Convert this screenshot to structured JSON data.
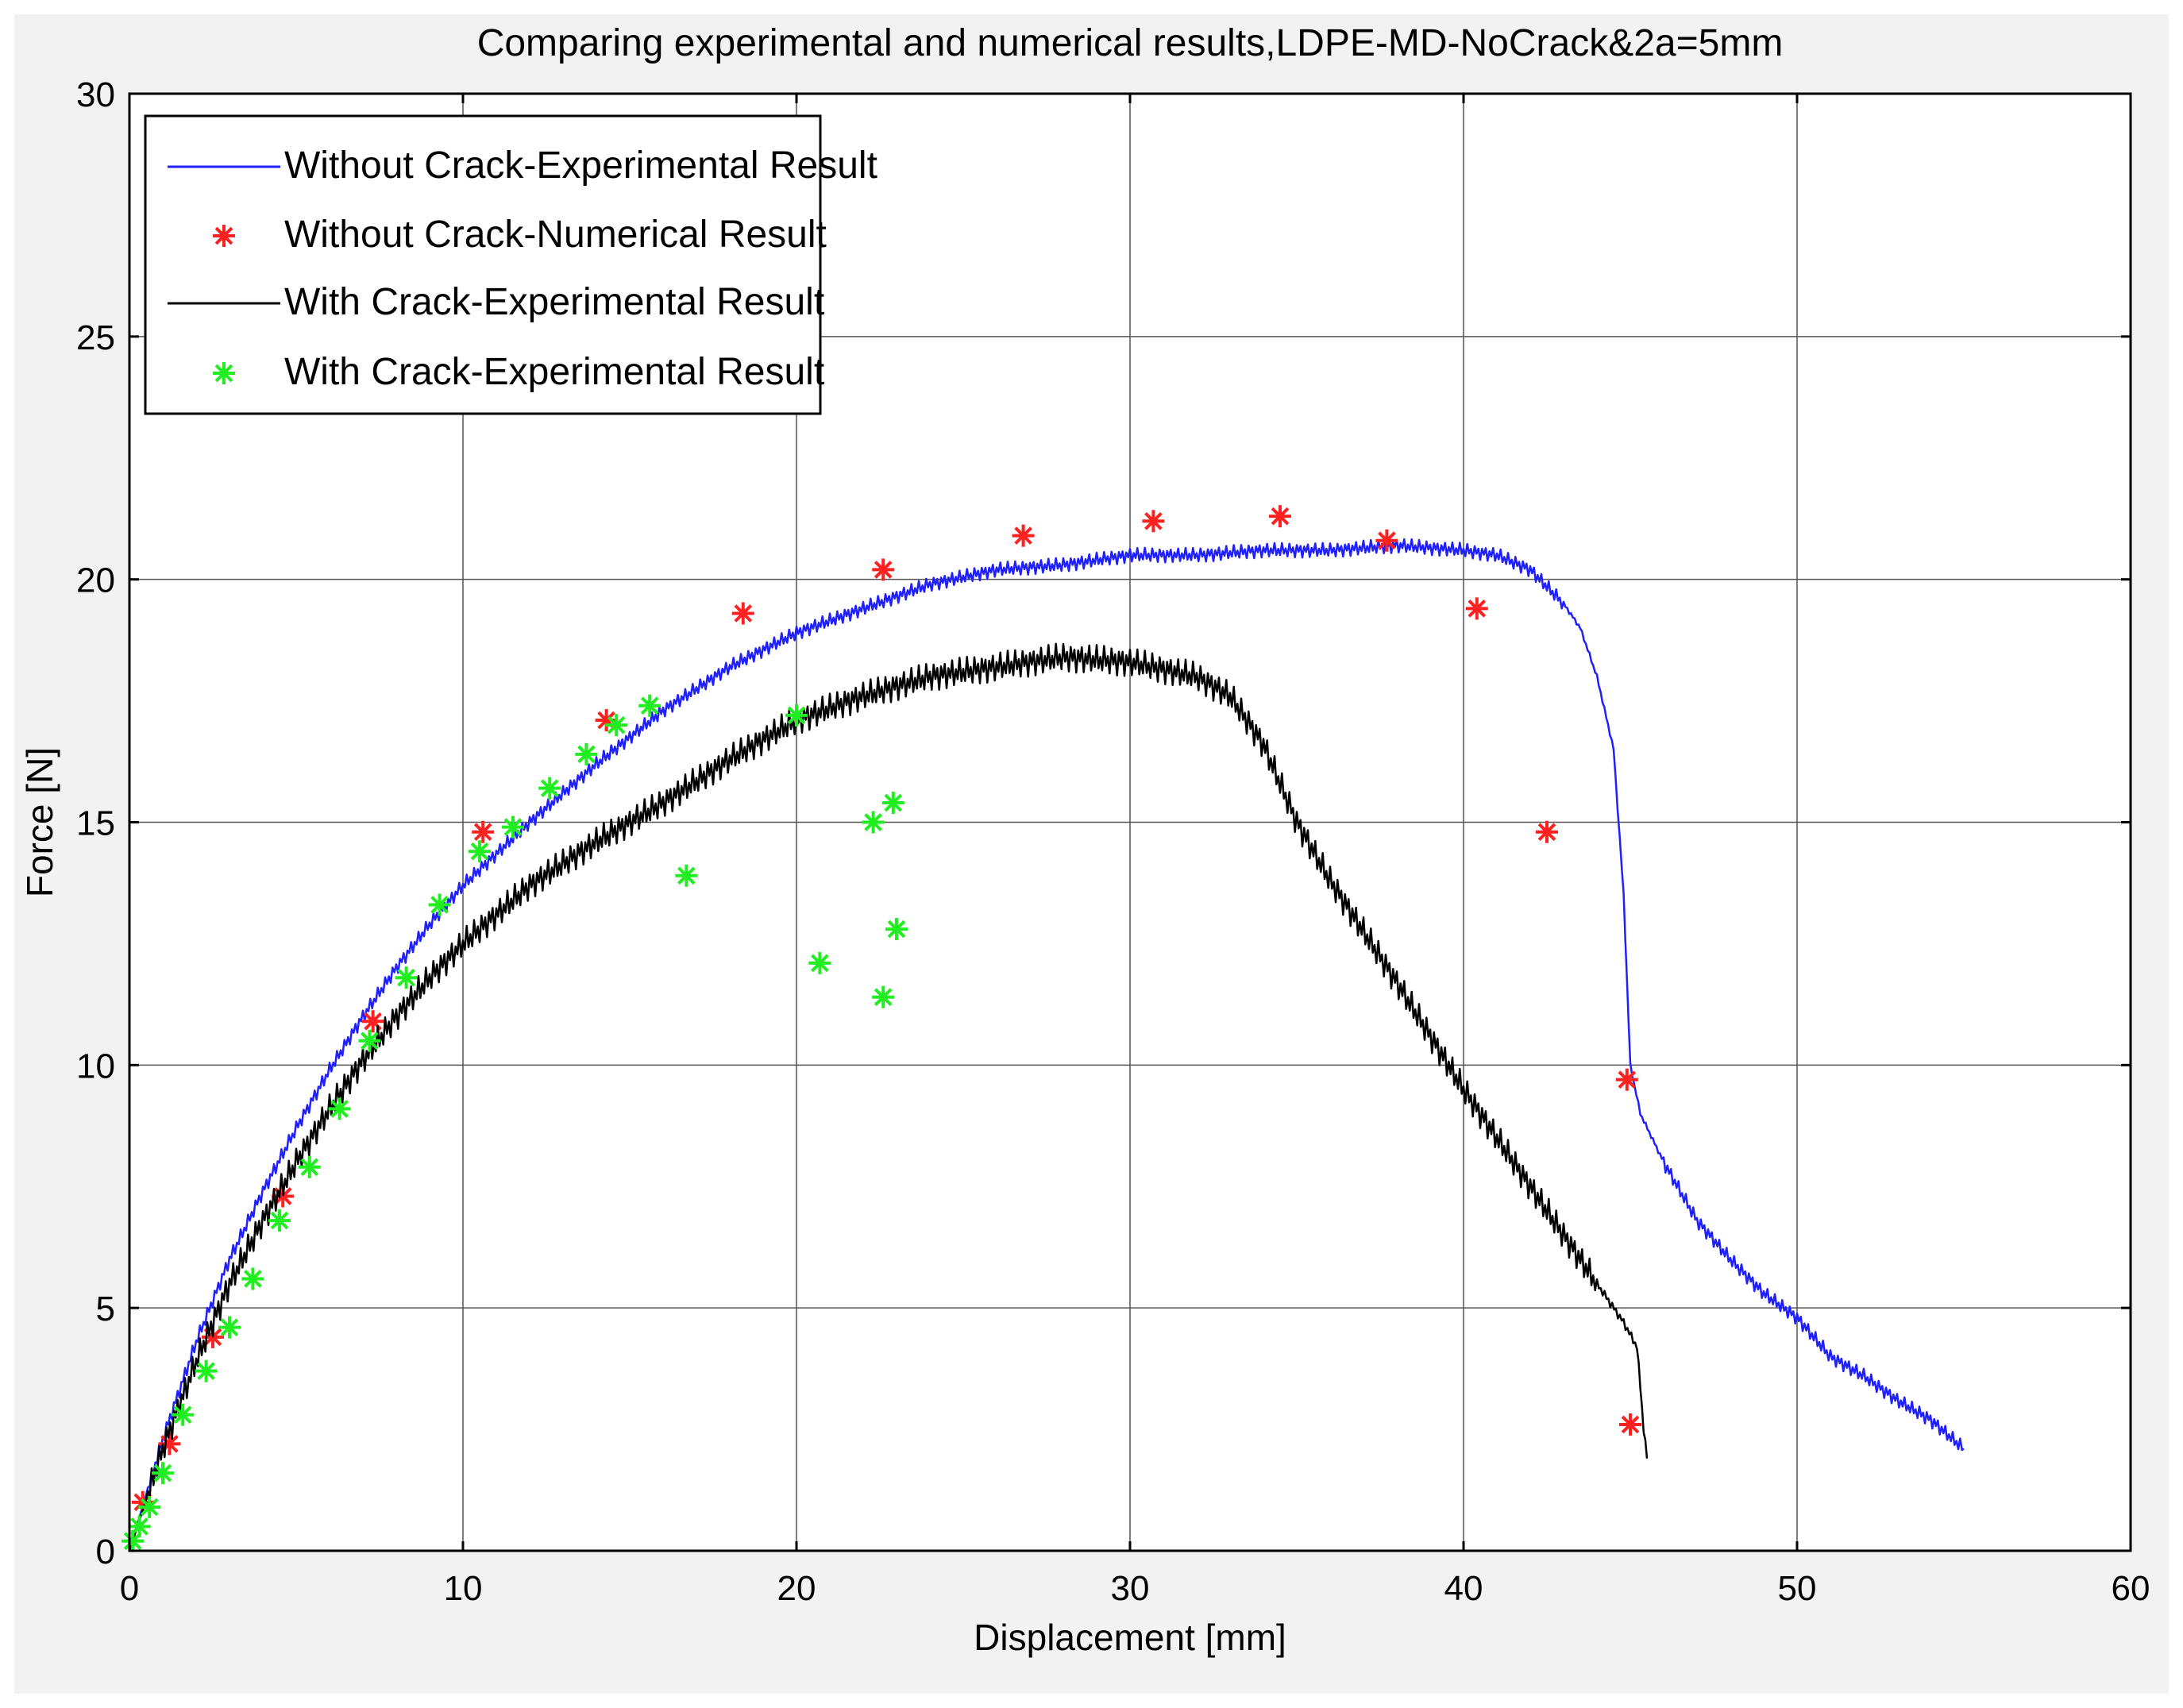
{
  "chart_data": {
    "type": "line",
    "title": "Comparing experimental and numerical results,LDPE-MD-NoCrack&2a=5mm",
    "xlabel": "Displacement [mm]",
    "ylabel": "Force [N]",
    "xlim": [
      0,
      60
    ],
    "ylim": [
      0,
      30
    ],
    "xticks": [
      0,
      10,
      20,
      30,
      40,
      50,
      60
    ],
    "yticks": [
      0,
      5,
      10,
      15,
      20,
      25,
      30
    ],
    "xtick_labels": [
      "0",
      "10",
      "20",
      "30",
      "40",
      "50",
      "60"
    ],
    "ytick_labels": [
      "0",
      "5",
      "10",
      "15",
      "20",
      "25",
      "30"
    ],
    "grid": true,
    "legend_position": "top-left",
    "series": [
      {
        "name": "Without Crack-Experimental Result",
        "style": "line",
        "color": "#2020ff",
        "x": [
          0,
          1,
          2,
          3,
          4,
          5,
          6,
          7,
          8,
          9,
          10,
          12,
          14,
          16,
          18,
          20,
          22,
          24,
          26,
          28,
          30,
          32,
          34,
          36,
          38,
          40,
          41,
          42,
          43,
          43.5,
          44,
          44.5,
          44.8,
          45,
          45.3,
          46,
          47,
          48,
          49,
          50,
          51,
          52,
          53,
          54,
          55
        ],
        "y": [
          0,
          2.3,
          4.3,
          6.0,
          7.4,
          8.7,
          9.9,
          11.0,
          12.0,
          12.9,
          13.7,
          15.0,
          16.2,
          17.3,
          18.2,
          18.9,
          19.4,
          19.9,
          20.2,
          20.3,
          20.5,
          20.5,
          20.6,
          20.6,
          20.7,
          20.6,
          20.5,
          20.2,
          19.5,
          19.0,
          18.0,
          16.5,
          13.5,
          10.0,
          9.0,
          8.0,
          6.8,
          6.0,
          5.3,
          4.8,
          4.0,
          3.6,
          3.1,
          2.7,
          2.1
        ],
        "jitter": 0.15
      },
      {
        "name": "Without Crack-Numerical Result",
        "style": "marker",
        "color": "#ff2020",
        "x": [
          0.4,
          1.2,
          2.5,
          4.6,
          7.3,
          10.6,
          14.3,
          18.4,
          22.6,
          26.8,
          30.7,
          34.5,
          37.7,
          40.4,
          42.5,
          44.9,
          45.0
        ],
        "y": [
          1.0,
          2.2,
          4.4,
          7.3,
          10.9,
          14.8,
          17.1,
          19.3,
          20.2,
          20.9,
          21.2,
          21.3,
          20.8,
          19.4,
          14.8,
          9.7,
          2.6
        ]
      },
      {
        "name": "With Crack-Experimental Result",
        "style": "line",
        "color": "#000000",
        "x": [
          0,
          1,
          2,
          3,
          4,
          5,
          6,
          7,
          8,
          9,
          10,
          12,
          14,
          16,
          18,
          20,
          22,
          24,
          26,
          28,
          30,
          32,
          33,
          34,
          35,
          36,
          38,
          40,
          42,
          44,
          44.8,
          45.2,
          45.3,
          45.4,
          45.5
        ],
        "y": [
          0,
          2.1,
          3.9,
          5.5,
          6.8,
          8.0,
          9.1,
          10.1,
          11.0,
          11.8,
          12.5,
          13.7,
          14.6,
          15.4,
          16.3,
          17.1,
          17.6,
          18.0,
          18.2,
          18.4,
          18.3,
          18.0,
          17.6,
          16.6,
          15.0,
          13.8,
          11.7,
          9.5,
          7.5,
          5.5,
          4.7,
          4.2,
          3.4,
          2.5,
          1.9
        ],
        "jitter": 0.3
      },
      {
        "name": "With Crack-Experimental Result",
        "style": "marker",
        "color": "#20ee20",
        "x": [
          0.1,
          0.3,
          0.6,
          1.0,
          1.6,
          2.3,
          3.0,
          3.7,
          4.5,
          5.4,
          6.3,
          7.2,
          8.3,
          9.3,
          10.5,
          11.5,
          12.6,
          13.7,
          14.6,
          15.6,
          16.7,
          20.0,
          20.7,
          22.3,
          22.6,
          22.9,
          23.0
        ],
        "y": [
          0.2,
          0.5,
          0.9,
          1.6,
          2.8,
          3.7,
          4.6,
          5.6,
          6.8,
          7.9,
          9.1,
          10.5,
          11.8,
          13.3,
          14.4,
          14.9,
          15.7,
          16.4,
          17.0,
          17.4,
          13.9,
          17.2,
          12.1,
          15.0,
          11.4,
          15.4,
          12.8
        ]
      }
    ]
  },
  "legend": {
    "entries": [
      "Without Crack-Experimental Result",
      "Without Crack-Numerical Result",
      "With Crack-Experimental Result",
      "With Crack-Experimental Result"
    ]
  }
}
